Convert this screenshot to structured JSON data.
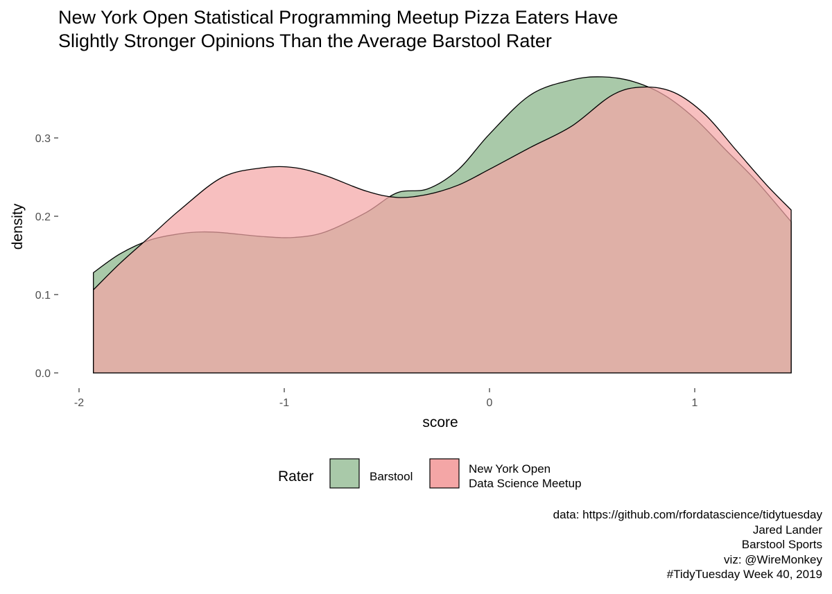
{
  "title": {
    "line1": "New York Open Statistical Programming Meetup Pizza Eaters Have",
    "line2": "Slightly Stronger Opinions Than the Average Barstool Rater"
  },
  "caption": [
    "data: https://github.com/rfordatascience/tidytuesday",
    "Jared Lander",
    "Barstool Sports",
    "viz: @WireMonkey",
    "#TidyTuesday Week 40, 2019"
  ],
  "chart_data": {
    "type": "area",
    "title": "New York Open Statistical Programming Meetup Pizza Eaters Have Slightly Stronger Opinions Than the Average Barstool Rater",
    "xlabel": "score",
    "ylabel": "density",
    "xlim": [
      -2,
      1.5
    ],
    "ylim": [
      0,
      0.37
    ],
    "x_ticks": [
      -2,
      -1,
      0,
      1
    ],
    "x_tick_labels": [
      "-2",
      "-1",
      "0",
      "1"
    ],
    "y_ticks": [
      0.0,
      0.1,
      0.2,
      0.3
    ],
    "y_tick_labels": [
      "0.0",
      "0.1",
      "0.2",
      "0.3"
    ],
    "grid": false,
    "legend": {
      "title": "Rater",
      "position": "bottom"
    },
    "series": [
      {
        "name": "Barstool",
        "color": "#a9c9a9",
        "x": [
          -1.93,
          -1.8,
          -1.65,
          -1.5,
          -1.4,
          -1.3,
          -1.1,
          -0.95,
          -0.8,
          -0.6,
          -0.45,
          -0.3,
          -0.15,
          0.0,
          0.2,
          0.4,
          0.55,
          0.7,
          0.85,
          1.0,
          1.15,
          1.3,
          1.47
        ],
        "y": [
          0.128,
          0.152,
          0.17,
          0.178,
          0.18,
          0.179,
          0.174,
          0.173,
          0.18,
          0.205,
          0.23,
          0.235,
          0.26,
          0.305,
          0.355,
          0.374,
          0.378,
          0.372,
          0.355,
          0.325,
          0.285,
          0.245,
          0.193
        ]
      },
      {
        "name": "New York Open\nData Science Meetup",
        "color": "#f4a6a6",
        "x": [
          -1.93,
          -1.8,
          -1.65,
          -1.5,
          -1.3,
          -1.1,
          -0.95,
          -0.8,
          -0.6,
          -0.45,
          -0.3,
          -0.15,
          0.0,
          0.2,
          0.4,
          0.6,
          0.75,
          0.9,
          1.05,
          1.2,
          1.35,
          1.47
        ],
        "y": [
          0.106,
          0.14,
          0.175,
          0.21,
          0.25,
          0.262,
          0.262,
          0.252,
          0.232,
          0.224,
          0.228,
          0.24,
          0.26,
          0.288,
          0.315,
          0.355,
          0.365,
          0.358,
          0.33,
          0.285,
          0.24,
          0.208
        ]
      }
    ]
  }
}
